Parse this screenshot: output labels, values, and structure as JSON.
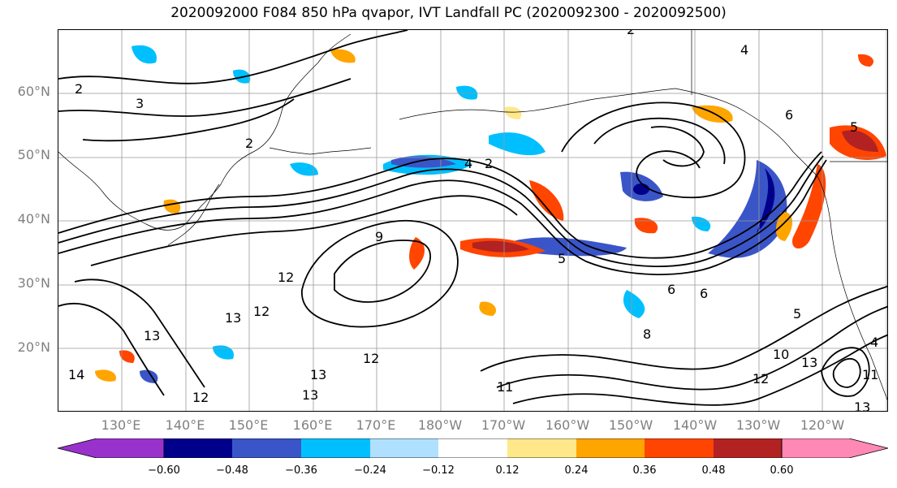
{
  "title": "2020092000 F084 850 hPa qvapor, IVT Landfall PC (2020092300 - 2020092500)",
  "lat_labels": [
    "60°N",
    "50°N",
    "40°N",
    "30°N",
    "20°N"
  ],
  "lon_labels": [
    "130°E",
    "140°E",
    "150°E",
    "160°E",
    "170°E",
    "180°W",
    "170°W",
    "160°W",
    "150°W",
    "140°W",
    "130°W",
    "120°W"
  ],
  "colorbar": {
    "colors": [
      "#9932cc",
      "#00008b",
      "#3a55c8",
      "#00bfff",
      "#b0e0ff",
      "#ffffff",
      "#ffe88a",
      "#ffa500",
      "#ff4500",
      "#b22222",
      "#ff88b4"
    ],
    "ticks": [
      "−0.60",
      "−0.48",
      "−0.36",
      "−0.24",
      "−0.12",
      "0.12",
      "0.24",
      "0.36",
      "0.48",
      "0.60"
    ]
  },
  "contour_labels": [
    "2",
    "3",
    "2",
    "12",
    "13",
    "12",
    "13",
    "13",
    "12",
    "9",
    "5",
    "8",
    "6",
    "11",
    "12",
    "10",
    "13",
    "13",
    "5",
    "6",
    "2",
    "4",
    "12",
    "14",
    "13",
    "2",
    "4",
    "6",
    "5",
    "11",
    "4"
  ],
  "map_style": {
    "grid_color": "#999999",
    "contour_color": "#000000",
    "coast_color": "#000000"
  }
}
